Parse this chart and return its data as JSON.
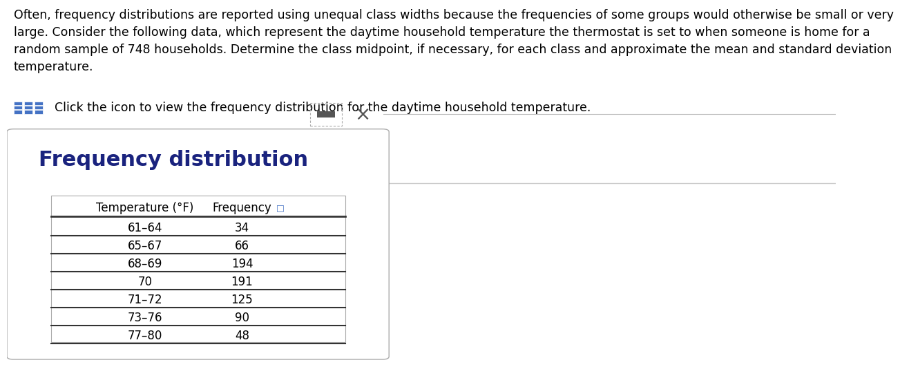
{
  "paragraph_text": "Often, frequency distributions are reported using unequal class widths because the frequencies of some groups would otherwise be small or very\nlarge. Consider the following data, which represent the daytime household temperature the thermostat is set to when someone is home for a\nrandom sample of 748 households. Determine the class midpoint, if necessary, for each class and approximate the mean and standard deviation\ntemperature.",
  "icon_text": "Click the icon to view the frequency distribution for the daytime household temperature.",
  "popup_title": "Frequency distribution",
  "col1_header": "Temperature (°F)",
  "col2_header": "Frequency",
  "table_rows": [
    [
      "61–64",
      "34"
    ],
    [
      "65–67",
      "66"
    ],
    [
      "68–69",
      "194"
    ],
    [
      "70",
      "191"
    ],
    [
      "71–72",
      "125"
    ],
    [
      "73–76",
      "90"
    ],
    [
      "77–80",
      "48"
    ]
  ],
  "bg_color": "#ffffff",
  "text_color": "#000000",
  "popup_bg": "#ffffff",
  "popup_border": "#aaaaaa",
  "table_border": "#333333",
  "icon_color": "#4472c4",
  "paragraph_fontsize": 12.5,
  "icon_fontsize": 12.5,
  "title_fontsize": 22,
  "header_fontsize": 12,
  "row_fontsize": 12,
  "title_color": "#1a237e",
  "separator_color": "#cccccc",
  "minimize_fill": "#555555",
  "minimize_border": "#888888",
  "close_color": "#555555"
}
